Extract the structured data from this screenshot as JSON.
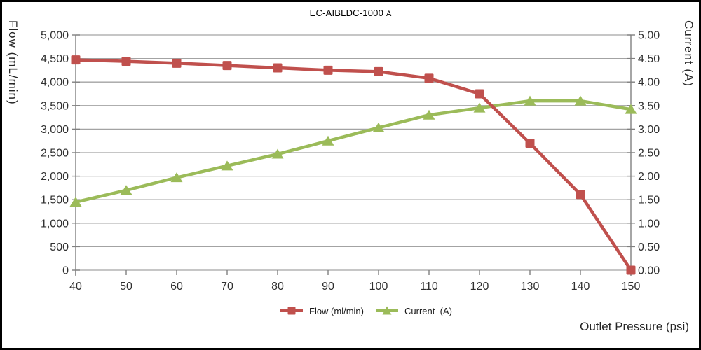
{
  "title": {
    "main": "EC-AIBLDC-1000",
    "suffix": "A"
  },
  "axes": {
    "left_title": "Flow (mL/min)",
    "right_title": "Current (A)",
    "x_title": "Outlet Pressure (psi)"
  },
  "legend": [
    {
      "label": "Flow (ml/min)",
      "series": "flow"
    },
    {
      "label": "Current  (A)",
      "series": "current"
    }
  ],
  "colors": {
    "flow": "#C0504D",
    "current": "#9BBB59",
    "grid": "#A3A3A3",
    "axis": "#808080",
    "tick_text": "#303030",
    "background": "#FFFFFF",
    "frame_border": "#000000"
  },
  "chart_data": {
    "type": "line",
    "title": "EC-AIBLDC-1000 A",
    "xlabel": "Outlet Pressure (psi)",
    "grid": "horizontal",
    "legend_position": "bottom",
    "x": [
      40,
      50,
      60,
      70,
      80,
      90,
      100,
      110,
      120,
      130,
      140,
      150
    ],
    "x_axis": {
      "min": 40,
      "max": 150,
      "step": 10,
      "tick_labels": [
        "40",
        "50",
        "60",
        "70",
        "80",
        "90",
        "100",
        "110",
        "120",
        "130",
        "140",
        "150"
      ]
    },
    "left_axis": {
      "title": "Flow (mL/min)",
      "min": 0,
      "max": 5000,
      "step": 500,
      "tick_labels": [
        "0",
        "500",
        "1,000",
        "1,500",
        "2,000",
        "2,500",
        "3,000",
        "3,500",
        "4,000",
        "4,500",
        "5,000"
      ]
    },
    "right_axis": {
      "title": "Current (A)",
      "min": 0,
      "max": 5,
      "step": 0.5,
      "tick_labels": [
        "0.00",
        "0.50",
        "1.00",
        "1.50",
        "2.00",
        "2.50",
        "3.00",
        "3.50",
        "4.00",
        "4.50",
        "5.00"
      ]
    },
    "series": [
      {
        "name": "Flow (ml/min)",
        "axis": "left",
        "marker": "square",
        "color": "#C0504D",
        "values": [
          4470,
          4440,
          4400,
          4350,
          4300,
          4250,
          4220,
          4080,
          3750,
          2700,
          1610,
          0
        ]
      },
      {
        "name": "Current (A)",
        "axis": "right",
        "marker": "triangle",
        "color": "#9BBB59",
        "values": [
          1.45,
          1.7,
          1.97,
          2.22,
          2.47,
          2.75,
          3.03,
          3.3,
          3.45,
          3.6,
          3.6,
          3.42
        ]
      }
    ]
  }
}
